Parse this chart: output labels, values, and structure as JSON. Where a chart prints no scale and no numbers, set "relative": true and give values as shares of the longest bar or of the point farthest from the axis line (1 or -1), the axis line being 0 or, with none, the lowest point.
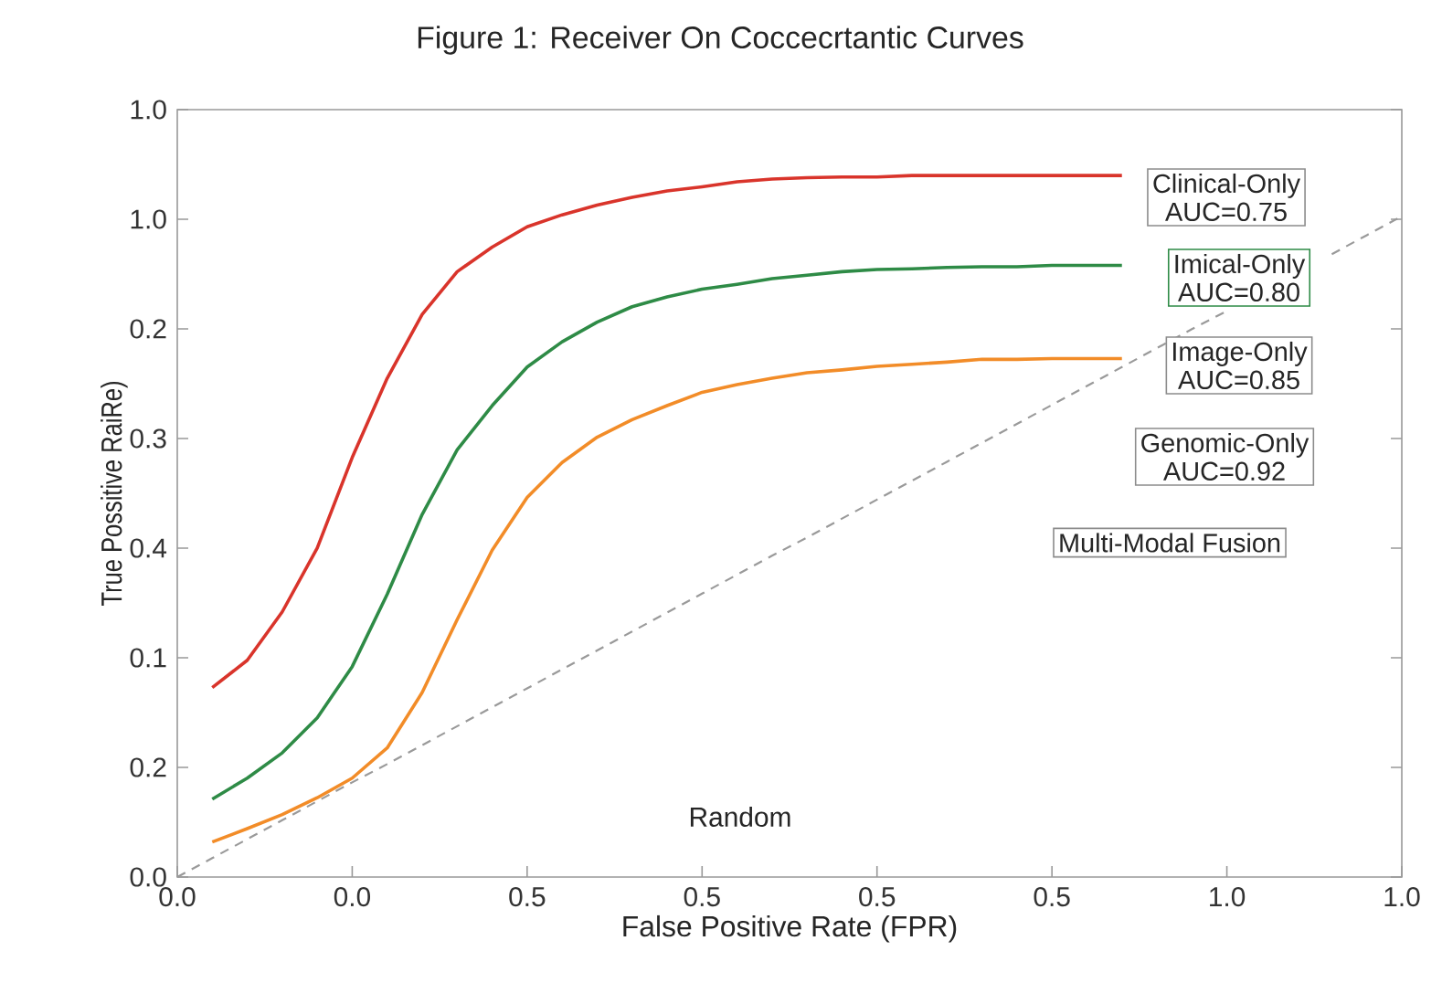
{
  "chart_data": {
    "type": "line",
    "title": "Figure 1: Receiver On Coccecrtantic Curves",
    "xlabel": "False Positive Rate (FPR)",
    "ylabel": "True Possitive RaiRe)",
    "relative": true,
    "categories": [
      "0.0",
      null,
      null,
      null,
      null,
      "0.0",
      null,
      null,
      null,
      null,
      "0.5",
      null,
      null,
      null,
      null,
      "0.5",
      null,
      null,
      null,
      null,
      "0.5",
      null,
      null,
      null,
      null,
      "0.5",
      null,
      null,
      null,
      null,
      "1.0",
      null,
      null,
      null,
      null,
      "1.0"
    ],
    "marker": "none",
    "grid": false,
    "series": [
      {
        "color": "#d9342b",
        "values": [
          null,
          0.27,
          0.309,
          0.378,
          0.469,
          0.598,
          0.711,
          0.802,
          0.863,
          0.898,
          0.927,
          0.944,
          0.958,
          0.969,
          0.978,
          0.984,
          0.991,
          0.995,
          0.997,
          0.998,
          0.998,
          1,
          1,
          1,
          1,
          1,
          1,
          1,
          null,
          null,
          null,
          null,
          null,
          null,
          null,
          null
        ]
      },
      {
        "color": "#2e8b46",
        "values": [
          null,
          0.111,
          0.141,
          0.177,
          0.227,
          0.3,
          0.403,
          0.517,
          0.609,
          0.672,
          0.727,
          0.763,
          0.791,
          0.813,
          0.827,
          0.838,
          0.845,
          0.853,
          0.858,
          0.863,
          0.866,
          0.867,
          0.869,
          0.87,
          0.87,
          0.872,
          0.872,
          0.872,
          null,
          null,
          null,
          null,
          null,
          null,
          null,
          null
        ]
      },
      {
        "color": "#f28c28",
        "values": [
          null,
          0.05,
          0.069,
          0.089,
          0.113,
          0.141,
          0.184,
          0.263,
          0.367,
          0.466,
          0.541,
          0.591,
          0.627,
          0.652,
          0.672,
          0.691,
          0.702,
          0.711,
          0.719,
          0.723,
          0.728,
          0.731,
          0.734,
          0.738,
          0.738,
          0.739,
          0.739,
          0.739,
          null,
          null,
          null,
          null,
          null,
          null,
          null,
          null
        ]
      },
      {
        "color": "#9a9a9a",
        "line_style": "dashed",
        "values": [
          0,
          0.027,
          0.054,
          0.081,
          0.108,
          0.135,
          0.161,
          0.188,
          0.215,
          0.242,
          0.269,
          0.296,
          0.323,
          0.35,
          0.377,
          0.404,
          0.431,
          0.458,
          0.484,
          0.511,
          0.538,
          0.565,
          0.592,
          0.619,
          0.646,
          0.673,
          0.7,
          0.727,
          0.754,
          0.781,
          0.807,
          null,
          null,
          0.888,
          0.915,
          0.942
        ]
      }
    ],
    "annotations": [
      "Clinical-Only",
      "AUC=0.75",
      "Imical-Only",
      "AUC=0.80",
      "Image-Only",
      "AUC=0.85",
      "Genomic-Only",
      "AUC=0.92",
      "Multi-Modal Fusion",
      "Random",
      "0.0",
      "0.2",
      "0.1",
      "0.4",
      "0.3",
      "0.2",
      "1.0",
      "1.0"
    ]
  }
}
